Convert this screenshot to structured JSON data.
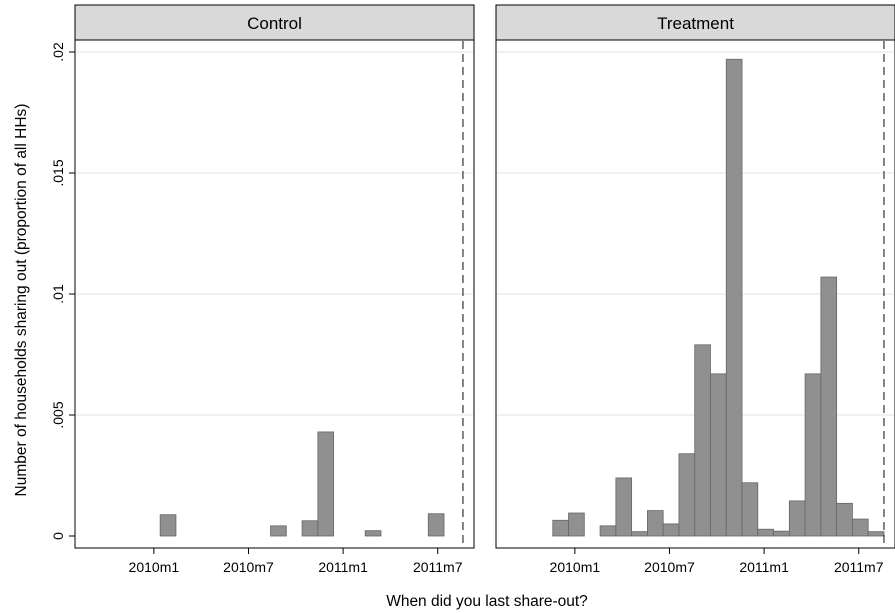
{
  "chart_data": {
    "type": "bar",
    "ylabel": "Number of households sharing out (proportion of all HHs)",
    "xlabel": "When did you last share-out?",
    "ylim": [
      0,
      0.0205
    ],
    "xlim": [
      -5,
      20.3
    ],
    "yticks": [
      {
        "value": 0,
        "label": "0"
      },
      {
        "value": 0.005,
        "label": ".005"
      },
      {
        "value": 0.01,
        "label": ".01"
      },
      {
        "value": 0.015,
        "label": ".015"
      },
      {
        "value": 0.02,
        "label": ".02"
      }
    ],
    "xticks": [
      {
        "value": 0,
        "label": "2010m1"
      },
      {
        "value": 6,
        "label": "2010m7"
      },
      {
        "value": 12,
        "label": "2011m1"
      },
      {
        "value": 18,
        "label": "2011m7"
      }
    ],
    "reference_line": {
      "x": 19.6,
      "style": "dashed"
    },
    "grid": true,
    "panels": [
      {
        "name": "Control",
        "bars": [
          {
            "x": 0.9,
            "y": 0.00088
          },
          {
            "x": 7.9,
            "y": 0.00042
          },
          {
            "x": 9.9,
            "y": 0.00063
          },
          {
            "x": 10.9,
            "y": 0.0043
          },
          {
            "x": 13.9,
            "y": 0.00022
          },
          {
            "x": 17.9,
            "y": 0.00092
          }
        ]
      },
      {
        "name": "Treatment",
        "bars": [
          {
            "x": -0.9,
            "y": 0.00065
          },
          {
            "x": 0.1,
            "y": 0.00095
          },
          {
            "x": 2.1,
            "y": 0.00042
          },
          {
            "x": 3.1,
            "y": 0.0024
          },
          {
            "x": 4.1,
            "y": 0.00018
          },
          {
            "x": 5.1,
            "y": 0.00105
          },
          {
            "x": 6.1,
            "y": 0.0005
          },
          {
            "x": 7.1,
            "y": 0.0034
          },
          {
            "x": 8.1,
            "y": 0.0079
          },
          {
            "x": 9.1,
            "y": 0.0067
          },
          {
            "x": 10.1,
            "y": 0.0197
          },
          {
            "x": 11.1,
            "y": 0.0022
          },
          {
            "x": 12.1,
            "y": 0.00028
          },
          {
            "x": 13.1,
            "y": 0.0002
          },
          {
            "x": 14.1,
            "y": 0.00145
          },
          {
            "x": 15.1,
            "y": 0.0067
          },
          {
            "x": 16.1,
            "y": 0.0107
          },
          {
            "x": 17.1,
            "y": 0.00135
          },
          {
            "x": 18.1,
            "y": 0.0007
          },
          {
            "x": 19.1,
            "y": 0.00018
          }
        ]
      }
    ]
  }
}
